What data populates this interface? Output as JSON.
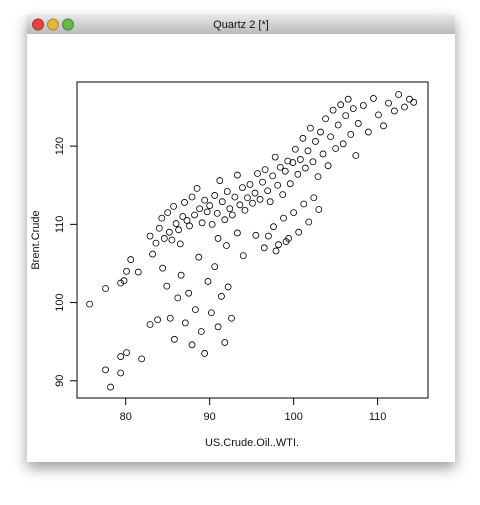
{
  "window": {
    "title": "Quartz 2 [*]"
  },
  "chart_data": {
    "type": "scatter",
    "x_label": "US.Crude.Oil..WTI.",
    "y_label": "Brent.Crude",
    "xlim": [
      74.2,
      116.0
    ],
    "ylim": [
      87.8,
      128.2
    ],
    "xticks": [
      80,
      90,
      100,
      110
    ],
    "yticks": [
      90,
      100,
      110,
      120
    ],
    "color": "#000000",
    "x": [
      84.0,
      84.3,
      84.6,
      85.0,
      85.2,
      85.5,
      85.7,
      86.0,
      86.3,
      86.5,
      86.8,
      87.0,
      87.3,
      87.6,
      87.9,
      88.2,
      88.5,
      88.8,
      89.1,
      89.4,
      89.7,
      90.0,
      90.3,
      90.6,
      90.9,
      91.2,
      91.5,
      91.8,
      92.1,
      92.4,
      92.7,
      93.0,
      93.3,
      93.6,
      93.9,
      94.2,
      94.5,
      94.8,
      95.1,
      95.4,
      95.7,
      96.0,
      96.3,
      96.6,
      96.9,
      97.2,
      97.5,
      97.8,
      98.1,
      98.4,
      98.7,
      99.0,
      99.3,
      99.6,
      99.9,
      100.2,
      100.5,
      100.8,
      101.1,
      101.4,
      101.7,
      102.0,
      102.3,
      102.6,
      102.9,
      103.2,
      103.5,
      103.8,
      104.1,
      104.4,
      104.7,
      105.0,
      105.3,
      105.6,
      105.9,
      106.2,
      106.5,
      106.8,
      107.1,
      107.4,
      107.7,
      108.3,
      108.9,
      109.5,
      110.1,
      110.7,
      111.3,
      112.0,
      112.5,
      113.2,
      113.8,
      114.3,
      96.5,
      97.0,
      97.6,
      98.2,
      98.8,
      99.4,
      100.0,
      100.6,
      101.2,
      101.8,
      102.4,
      103.0,
      97.9,
      99.1,
      94.0,
      95.5,
      93.3,
      92.0,
      91.0,
      75.7,
      77.6,
      78.2,
      79.4,
      79.4,
      80.1,
      79.4,
      79.8,
      80.1,
      80.6,
      77.6,
      81.9,
      82.9,
      82.9,
      83.6,
      83.8,
      84.4,
      84.9,
      85.3,
      85.8,
      86.2,
      86.6,
      87.1,
      87.5,
      87.9,
      88.3,
      88.7,
      89.0,
      89.4,
      89.8,
      90.2,
      90.6,
      91.0,
      91.4,
      91.8,
      92.2,
      92.6,
      83.2,
      81.5
    ],
    "values": [
      109.5,
      110.8,
      108.2,
      111.5,
      109.0,
      108.0,
      112.3,
      110.1,
      109.3,
      107.5,
      111.0,
      112.8,
      110.5,
      109.8,
      113.5,
      111.2,
      114.6,
      112.0,
      110.2,
      113.1,
      111.6,
      112.4,
      110.0,
      113.7,
      111.4,
      115.6,
      112.9,
      110.6,
      114.2,
      112.0,
      111.2,
      113.5,
      116.3,
      112.5,
      114.7,
      111.8,
      113.4,
      115.1,
      112.7,
      114.0,
      116.5,
      113.2,
      115.4,
      117.0,
      114.3,
      112.9,
      116.2,
      118.6,
      115.0,
      117.3,
      113.8,
      116.8,
      118.1,
      115.2,
      117.9,
      119.6,
      116.4,
      118.3,
      121.0,
      117.2,
      119.4,
      122.3,
      118.0,
      120.6,
      116.1,
      121.8,
      119.0,
      123.5,
      117.5,
      121.2,
      124.6,
      119.7,
      122.7,
      125.3,
      120.3,
      123.9,
      126.0,
      121.5,
      124.8,
      118.8,
      122.9,
      125.2,
      121.8,
      126.1,
      124.0,
      122.6,
      125.5,
      124.5,
      126.6,
      125.0,
      126.0,
      125.6,
      107.0,
      108.5,
      109.7,
      107.4,
      110.8,
      108.2,
      111.5,
      109.0,
      112.6,
      110.3,
      113.4,
      111.9,
      106.6,
      107.8,
      106.0,
      108.6,
      108.9,
      107.3,
      108.2,
      99.8,
      91.4,
      89.2,
      91.0,
      93.1,
      93.6,
      102.5,
      102.8,
      104.0,
      105.5,
      101.8,
      92.8,
      97.2,
      108.5,
      107.6,
      97.8,
      104.4,
      102.1,
      98.0,
      95.3,
      100.6,
      103.5,
      97.4,
      101.2,
      94.6,
      99.1,
      105.8,
      96.3,
      93.5,
      102.7,
      98.7,
      104.6,
      96.9,
      100.8,
      94.9,
      102.0,
      98.0,
      106.2,
      103.9
    ]
  }
}
